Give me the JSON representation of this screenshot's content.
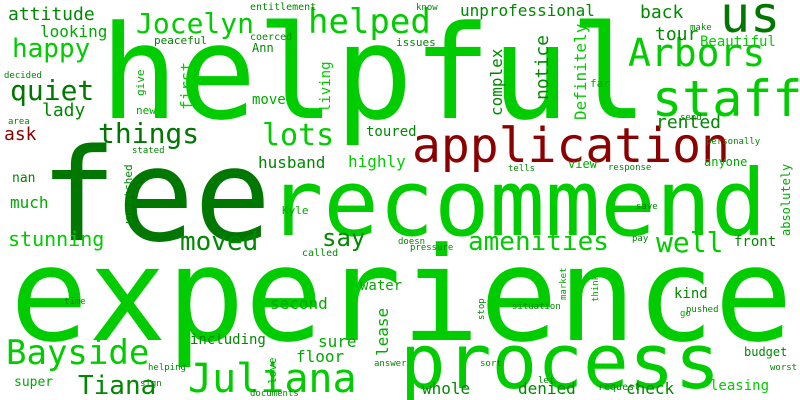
{
  "colors": {
    "background": "#ffffff",
    "light_green": "#00cc00",
    "mid_green": "#00aa00",
    "dark_green": "#008800",
    "deep_green": "#007700",
    "dark_red": "#8b0000"
  },
  "words": [
    "helpful",
    "fee",
    "experience",
    "recommend",
    "process",
    "application",
    "staff",
    "us",
    "Jocelyn",
    "helped",
    "Arbors",
    "Juliana",
    "Bayside",
    "Tiana",
    "happy",
    "quiet",
    "things",
    "lots",
    "moved",
    "amenities",
    "well",
    "say",
    "stunning",
    "attitude",
    "looking",
    "lady",
    "ask",
    "back",
    "tour",
    "rented",
    "husband",
    "much",
    "nan",
    "highly",
    "Definitely",
    "notice",
    "complex",
    "unprofessional",
    "Beautiful",
    "living",
    "first",
    "move",
    "toured",
    "view",
    "front",
    "anyone",
    "absolutely",
    "second",
    "water",
    "lease",
    "including",
    "sure",
    "floor",
    "kind",
    "leasing",
    "budget",
    "check",
    "denied",
    "whole",
    "super",
    "entitlement",
    "know",
    "coerced",
    "peaceful",
    "Ann",
    "issues",
    "make",
    "give",
    "new",
    "far",
    "send",
    "personally",
    "decided",
    "area",
    "stated",
    "unmatched",
    "tells",
    "response",
    "Kyle",
    "called",
    "doesn",
    "pressure",
    "pay",
    "save",
    "market",
    "think",
    "stop",
    "situation",
    "pushed",
    "go",
    "time",
    "sign",
    "helping",
    "documents",
    "love",
    "answer",
    "sort",
    "let",
    "request",
    "worst"
  ]
}
